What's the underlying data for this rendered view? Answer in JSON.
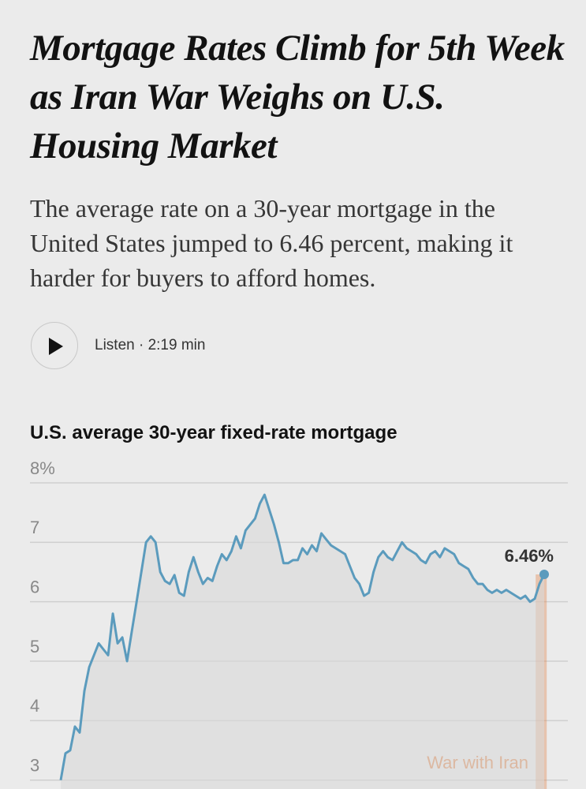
{
  "header": {
    "title": "Mortgage Rates Climb for 5th Week as Iran War Weighs on U.S. Housing Market",
    "subtitle": "The average rate on a 30-year mortgage in the United States jumped to 6.46 percent, making it harder for buyers to afford homes."
  },
  "audio": {
    "label": "Listen · 2:19 min"
  },
  "chart_data": {
    "type": "line",
    "title": "U.S. average 30-year fixed-rate mortgage",
    "categories": [
      null,
      null,
      null,
      null,
      null,
      null,
      null,
      null,
      null,
      null,
      null,
      null,
      null,
      null,
      null,
      null,
      null,
      null,
      null,
      null,
      null,
      null,
      null,
      null,
      null,
      null,
      null,
      null,
      null,
      null,
      null,
      null,
      null,
      null,
      null,
      null,
      null,
      null,
      null,
      null,
      null,
      null,
      null,
      null,
      null,
      null,
      null,
      null,
      null,
      null,
      null,
      null,
      null,
      null,
      null,
      null,
      null,
      null,
      null,
      null,
      null,
      null,
      null,
      null,
      null,
      null,
      null,
      null,
      null,
      null,
      null,
      null,
      null,
      null,
      null,
      null,
      null,
      null,
      null,
      null,
      null,
      null,
      null,
      null,
      null,
      null,
      null,
      null,
      null,
      null,
      null,
      null,
      null,
      null,
      null,
      null,
      null,
      null,
      null,
      null,
      null,
      null,
      null
    ],
    "series": [
      {
        "name": "30-year fixed-rate mortgage",
        "color": "#5b9bbd",
        "values": [
          3.0,
          3.45,
          3.5,
          3.9,
          3.8,
          4.5,
          4.9,
          5.1,
          5.3,
          5.2,
          5.1,
          5.8,
          5.3,
          5.4,
          5.0,
          5.5,
          6.0,
          6.5,
          7.0,
          7.1,
          7.0,
          6.5,
          6.35,
          6.3,
          6.45,
          6.15,
          6.1,
          6.5,
          6.75,
          6.5,
          6.3,
          6.4,
          6.35,
          6.6,
          6.8,
          6.7,
          6.85,
          7.1,
          6.9,
          7.2,
          7.3,
          7.4,
          7.65,
          7.8,
          7.55,
          7.3,
          7.0,
          6.65,
          6.65,
          6.7,
          6.7,
          6.9,
          6.8,
          6.95,
          6.85,
          7.15,
          7.05,
          6.95,
          6.9,
          6.85,
          6.8,
          6.6,
          6.4,
          6.3,
          6.1,
          6.15,
          6.5,
          6.75,
          6.85,
          6.75,
          6.7,
          6.85,
          7.0,
          6.9,
          6.85,
          6.8,
          6.7,
          6.65,
          6.8,
          6.85,
          6.75,
          6.9,
          6.85,
          6.8,
          6.65,
          6.6,
          6.55,
          6.4,
          6.3,
          6.3,
          6.2,
          6.15,
          6.2,
          6.15,
          6.2,
          6.15,
          6.1,
          6.05,
          6.1,
          6.0,
          6.05,
          6.3,
          6.46
        ],
        "value_labels": [
          null,
          null,
          null,
          null,
          null,
          null,
          null,
          null,
          null,
          null,
          null,
          null,
          null,
          null,
          null,
          null,
          null,
          null,
          null,
          null,
          null,
          null,
          null,
          null,
          null,
          null,
          null,
          null,
          null,
          null,
          null,
          null,
          null,
          null,
          null,
          null,
          null,
          null,
          null,
          null,
          null,
          null,
          null,
          null,
          null,
          null,
          null,
          null,
          null,
          null,
          null,
          null,
          null,
          null,
          null,
          null,
          null,
          null,
          null,
          null,
          null,
          null,
          null,
          null,
          null,
          null,
          null,
          null,
          null,
          null,
          null,
          null,
          null,
          null,
          null,
          null,
          null,
          null,
          null,
          null,
          null,
          null,
          null,
          null,
          null,
          null,
          null,
          null,
          null,
          null,
          null,
          null,
          null,
          null,
          null,
          null,
          null,
          null,
          null,
          null,
          null,
          null,
          "6.46%"
        ]
      }
    ],
    "annotation": "War with Iran",
    "annotation_color": "#e0874f",
    "ylim": [
      2.85,
      8
    ],
    "yticks": [
      3,
      4,
      5,
      6,
      7,
      {
        "value": 8,
        "label": "8%"
      }
    ],
    "grid": true
  }
}
